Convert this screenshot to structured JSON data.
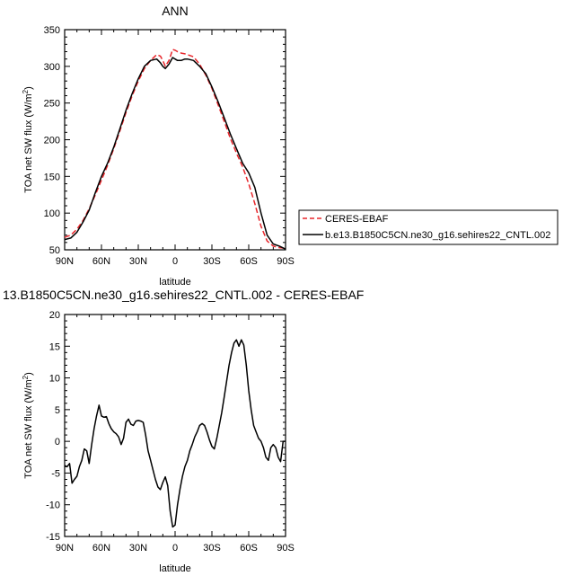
{
  "chart_data": [
    {
      "type": "line",
      "title": "ANN",
      "xlabel": "latitude",
      "ylabel": "TOA net SW flux (W/m²)",
      "ylabel_main": "TOA net SW flux (W/m",
      "ylabel_sup": "2",
      "ylabel_end": ")",
      "xlim": [
        90,
        -90
      ],
      "ylim": [
        50,
        350
      ],
      "xticks": [
        90,
        60,
        30,
        0,
        -30,
        -60,
        -90
      ],
      "xtick_labels": [
        "90N",
        "60N",
        "30N",
        "0",
        "30S",
        "60S",
        "90S"
      ],
      "yticks": [
        50,
        100,
        150,
        200,
        250,
        300,
        350
      ],
      "ytick_labels": [
        "50",
        "100",
        "150",
        "200",
        "250",
        "300",
        "350"
      ],
      "grid": false,
      "legend_position": "right",
      "series": [
        {
          "name": "CERES-EBAF",
          "color": "#e8262b",
          "dash": true,
          "x": [
            90,
            85,
            80,
            75,
            70,
            65,
            60,
            55,
            50,
            45,
            40,
            35,
            30,
            25,
            20,
            15,
            12,
            10,
            8,
            5,
            2,
            0,
            -2,
            -5,
            -8,
            -10,
            -15,
            -20,
            -25,
            -30,
            -35,
            -40,
            -45,
            -50,
            -55,
            -60,
            -65,
            -70,
            -75,
            -80,
            -85,
            -90
          ],
          "y": [
            67,
            70,
            78,
            90,
            106,
            125,
            145,
            165,
            188,
            212,
            237,
            260,
            280,
            297,
            308,
            316,
            314,
            308,
            300,
            308,
            323,
            322,
            320,
            318,
            317,
            316,
            313,
            303,
            288,
            270,
            248,
            225,
            202,
            182,
            163,
            140,
            113,
            82,
            62,
            55,
            53,
            52
          ]
        },
        {
          "name": "b.e13.B1850C5CN.ne30_g16.sehires22_CNTL.002",
          "color": "#000000",
          "dash": false,
          "x": [
            90,
            85,
            80,
            75,
            70,
            65,
            60,
            55,
            50,
            45,
            40,
            35,
            30,
            25,
            20,
            15,
            12,
            10,
            8,
            5,
            2,
            0,
            -2,
            -5,
            -8,
            -10,
            -15,
            -20,
            -25,
            -30,
            -35,
            -40,
            -45,
            -50,
            -55,
            -60,
            -65,
            -70,
            -75,
            -80,
            -85,
            -90
          ],
          "y": [
            64,
            66,
            74,
            88,
            104,
            128,
            150,
            168,
            190,
            215,
            240,
            263,
            283,
            300,
            308,
            310,
            305,
            300,
            297,
            303,
            312,
            310,
            308,
            308,
            310,
            310,
            308,
            300,
            290,
            272,
            252,
            230,
            208,
            188,
            168,
            155,
            135,
            100,
            70,
            58,
            55,
            51
          ]
        }
      ]
    },
    {
      "type": "line",
      "title": "13.B1850C5CN.ne30_g16.sehires22_CNTL.002 - CERES-EBAF",
      "xlabel": "latitude",
      "ylabel": "TOA net SW flux (W/m²)",
      "ylabel_main": "TOA net SW flux (W/m",
      "ylabel_sup": "2",
      "ylabel_end": ")",
      "xlim": [
        90,
        -90
      ],
      "ylim": [
        -15,
        20
      ],
      "xticks": [
        90,
        60,
        30,
        0,
        -30,
        -60,
        -90
      ],
      "xtick_labels": [
        "90N",
        "60N",
        "30N",
        "0",
        "30S",
        "60S",
        "90S"
      ],
      "yticks": [
        -15,
        -10,
        -5,
        0,
        5,
        10,
        15,
        20
      ],
      "ytick_labels": [
        "-15",
        "-10",
        "-5",
        "0",
        "5",
        "10",
        "15",
        "20"
      ],
      "grid": false,
      "series": [
        {
          "color": "#000000",
          "dash": false,
          "x": [
            90,
            88,
            86,
            84,
            82,
            80,
            78,
            76,
            74,
            72,
            70,
            68,
            66,
            64,
            62,
            60,
            58,
            56,
            54,
            52,
            50,
            48,
            46,
            44,
            42,
            40,
            38,
            36,
            34,
            32,
            30,
            28,
            26,
            24,
            22,
            20,
            18,
            16,
            14,
            12,
            10,
            8,
            6,
            4,
            2,
            0,
            -2,
            -4,
            -6,
            -8,
            -10,
            -12,
            -14,
            -16,
            -18,
            -20,
            -22,
            -24,
            -26,
            -28,
            -30,
            -32,
            -34,
            -36,
            -38,
            -40,
            -42,
            -44,
            -46,
            -48,
            -50,
            -52,
            -54,
            -56,
            -58,
            -60,
            -62,
            -64,
            -66,
            -68,
            -70,
            -72,
            -74,
            -76,
            -78,
            -80,
            -82,
            -84,
            -86,
            -88,
            -90
          ],
          "y": [
            -3.8,
            -4.0,
            -3.5,
            -6.6,
            -6.0,
            -5.5,
            -4.0,
            -3.0,
            -1.2,
            -1.5,
            -3.5,
            -0.5,
            2.0,
            4.0,
            5.7,
            4.0,
            3.8,
            3.9,
            2.8,
            2.0,
            1.5,
            1.2,
            0.7,
            -0.5,
            0.5,
            3.0,
            3.5,
            2.7,
            2.5,
            3.2,
            3.3,
            3.2,
            3.0,
            1.0,
            -1.5,
            -3.0,
            -4.5,
            -6.0,
            -7.2,
            -7.6,
            -6.5,
            -5.6,
            -7.0,
            -11.0,
            -13.5,
            -13.2,
            -10.0,
            -7.5,
            -5.5,
            -4.0,
            -3.0,
            -1.5,
            -0.5,
            0.7,
            1.5,
            2.5,
            2.8,
            2.5,
            1.5,
            0.2,
            -0.8,
            -1.2,
            0.5,
            2.5,
            4.5,
            7.0,
            9.5,
            12.0,
            14.0,
            15.5,
            16.0,
            15.0,
            16.0,
            15.2,
            12.0,
            8.0,
            5.0,
            2.5,
            1.5,
            0.5,
            0.0,
            -1.0,
            -2.5,
            -3.0,
            -1.0,
            -0.5,
            -1.0,
            -2.5,
            -3.2,
            0.0,
            0.0
          ]
        }
      ]
    }
  ]
}
